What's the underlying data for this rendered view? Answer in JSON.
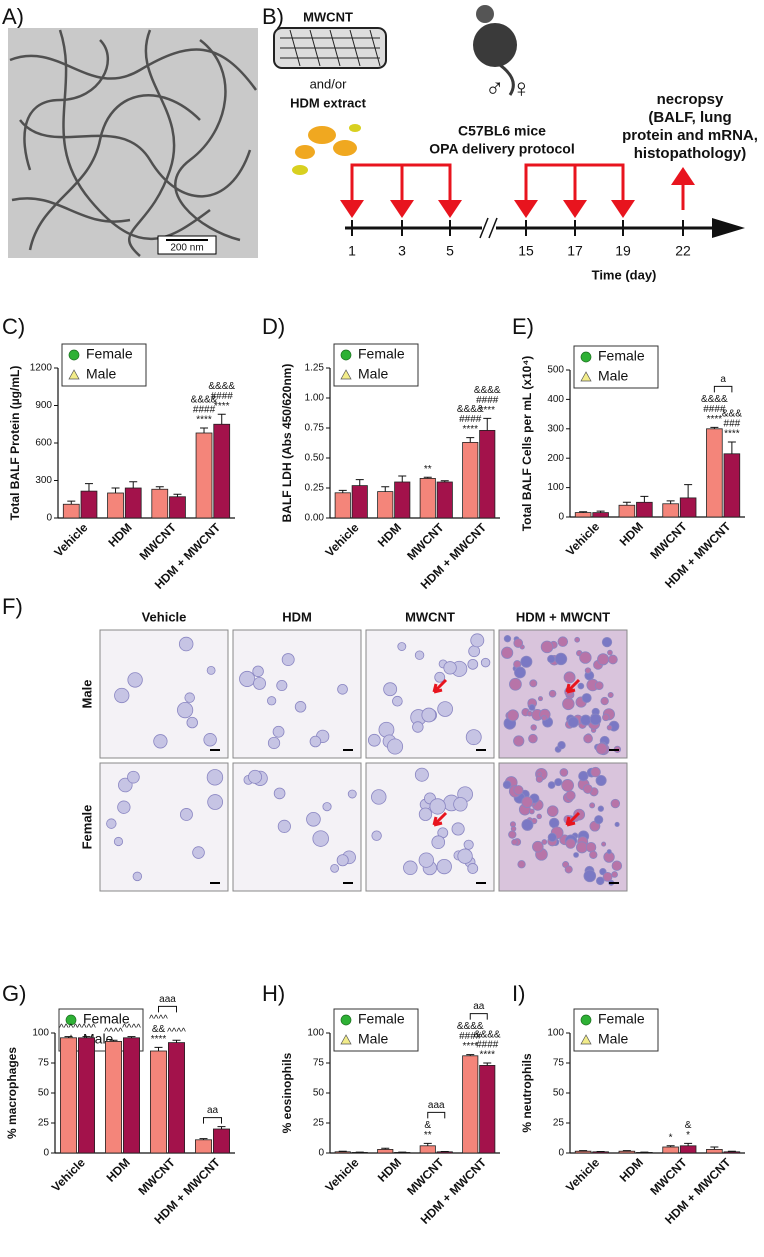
{
  "panel_a": {
    "label": "A)",
    "scale_bar": "200 nm"
  },
  "panel_b": {
    "label": "B)",
    "material": "MWCNT",
    "conjunction": "and/or",
    "allergen": "HDM extract",
    "sexes": "♂ ♀",
    "mice": "C57BL6 mice",
    "protocol": "OPA delivery protocol",
    "endpoint": [
      "necropsy",
      "(BALF, lung",
      "protein and mRNA,",
      "histopathology)"
    ],
    "days": [
      1,
      3,
      5,
      15,
      17,
      19,
      22
    ],
    "axis_label": "Time (day)"
  },
  "panel_f": {
    "label": "F)",
    "columns": [
      "Vehicle",
      "HDM",
      "MWCNT",
      "HDM + MWCNT"
    ],
    "rows": [
      "Male",
      "Female"
    ]
  },
  "chart_data": [
    {
      "type": "bar",
      "panel_label": "C)",
      "y_label": "Total BALF Protein (µg/mL)",
      "categories": [
        "Vehicle",
        "HDM",
        "MWCNT",
        "HDM + MWCNT"
      ],
      "ylim": [
        0,
        1200
      ],
      "yticks": [
        0,
        300,
        600,
        900,
        1200
      ],
      "series": [
        {
          "name": "Female",
          "color": "#f4857a",
          "marker": "circle",
          "marker_color": "#2eb135",
          "values": [
            110,
            200,
            230,
            680
          ],
          "errors": [
            25,
            40,
            20,
            40
          ],
          "annotations": [
            null,
            null,
            null,
            [
              "&&&&",
              "####",
              "****"
            ]
          ]
        },
        {
          "name": "Male",
          "color": "#a3124b",
          "marker": "triangle",
          "marker_color": "#f2ec8a",
          "values": [
            215,
            240,
            170,
            750
          ],
          "errors": [
            60,
            50,
            20,
            80
          ],
          "annotations": [
            null,
            null,
            null,
            [
              "&&&&",
              "####",
              "****"
            ]
          ]
        }
      ],
      "brackets": [
        null,
        null,
        null,
        null
      ]
    },
    {
      "type": "bar",
      "panel_label": "D)",
      "y_label": "BALF LDH (Abs 450/620nm)",
      "categories": [
        "Vehicle",
        "HDM",
        "MWCNT",
        "HDM + MWCNT"
      ],
      "ylim": [
        0,
        1.25
      ],
      "yticks": [
        {
          "value": 0,
          "label": "0.00"
        },
        {
          "value": 0.25,
          "label": "0.25"
        },
        {
          "value": 0.5,
          "label": "0.50"
        },
        {
          "value": 0.75,
          "label": "0.75"
        },
        {
          "value": 1,
          "label": "1.00"
        },
        {
          "value": 1.25,
          "label": "1.25"
        }
      ],
      "series": [
        {
          "name": "Female",
          "color": "#f4857a",
          "marker": "circle",
          "marker_color": "#2eb135",
          "values": [
            0.21,
            0.22,
            0.33,
            0.63
          ],
          "errors": [
            0.02,
            0.04,
            0.01,
            0.04
          ],
          "annotations": [
            null,
            null,
            [
              "**"
            ],
            [
              "&&&&",
              "####",
              "****"
            ]
          ]
        },
        {
          "name": "Male",
          "color": "#a3124b",
          "marker": "triangle",
          "marker_color": "#f2ec8a",
          "values": [
            0.27,
            0.3,
            0.3,
            0.73
          ],
          "errors": [
            0.05,
            0.05,
            0.01,
            0.1
          ],
          "annotations": [
            null,
            null,
            null,
            [
              "&&&&",
              "####",
              "****"
            ]
          ]
        }
      ],
      "brackets": [
        null,
        null,
        null,
        null
      ]
    },
    {
      "type": "bar",
      "panel_label": "E)",
      "y_label": "Total BALF Cells per mL (x10⁴)",
      "categories": [
        "Vehicle",
        "HDM",
        "MWCNT",
        "HDM + MWCNT"
      ],
      "ylim": [
        0,
        500
      ],
      "yticks": [
        0,
        100,
        200,
        300,
        400,
        500
      ],
      "series": [
        {
          "name": "Female",
          "color": "#f4857a",
          "marker": "circle",
          "marker_color": "#2eb135",
          "values": [
            15,
            40,
            45,
            300
          ],
          "errors": [
            3,
            10,
            10,
            5
          ],
          "annotations": [
            null,
            null,
            null,
            [
              "&&&&",
              "####",
              "****"
            ]
          ]
        },
        {
          "name": "Male",
          "color": "#a3124b",
          "marker": "triangle",
          "marker_color": "#f2ec8a",
          "values": [
            15,
            50,
            65,
            215
          ],
          "errors": [
            5,
            20,
            45,
            40
          ],
          "annotations": [
            null,
            null,
            null,
            [
              "&&&",
              "###",
              "****"
            ]
          ]
        }
      ],
      "brackets": [
        null,
        null,
        null,
        "a"
      ]
    },
    {
      "type": "bar",
      "panel_label": "G)",
      "y_label": "% macrophages",
      "categories": [
        "Vehicle",
        "HDM",
        "MWCNT",
        "HDM + MWCNT"
      ],
      "ylim": [
        0,
        100
      ],
      "yticks": [
        0,
        25,
        50,
        75,
        100
      ],
      "series": [
        {
          "name": "Female",
          "color": "#f4857a",
          "marker": "circle",
          "marker_color": "#2eb135",
          "values": [
            96,
            93,
            85,
            11
          ],
          "errors": [
            1,
            1,
            3,
            1
          ],
          "annotations": [
            [
              "^^^^"
            ],
            [
              "^^^^"
            ],
            [
              "^^^^",
              "&&",
              "****"
            ],
            null
          ]
        },
        {
          "name": "Male",
          "color": "#a3124b",
          "marker": "triangle",
          "marker_color": "#f2ec8a",
          "values": [
            96,
            96,
            92,
            20
          ],
          "errors": [
            1,
            1,
            2,
            2
          ],
          "annotations": [
            [
              "^^^^"
            ],
            [
              "^^^^"
            ],
            [
              "^^^^"
            ],
            null
          ]
        }
      ],
      "brackets": [
        null,
        null,
        "aaa",
        "aa"
      ]
    },
    {
      "type": "bar",
      "panel_label": "H)",
      "y_label": "% eosinophils",
      "categories": [
        "Vehicle",
        "HDM",
        "MWCNT",
        "HDM + MWCNT"
      ],
      "ylim": [
        0,
        100
      ],
      "yticks": [
        0,
        25,
        50,
        75,
        100
      ],
      "series": [
        {
          "name": "Female",
          "color": "#f4857a",
          "marker": "circle",
          "marker_color": "#2eb135",
          "values": [
            1,
            3,
            6,
            81
          ],
          "errors": [
            0.5,
            1,
            2,
            1
          ],
          "annotations": [
            null,
            null,
            [
              "&",
              "**"
            ],
            [
              "&&&&",
              "####",
              "****"
            ]
          ]
        },
        {
          "name": "Male",
          "color": "#a3124b",
          "marker": "triangle",
          "marker_color": "#f2ec8a",
          "values": [
            0.5,
            0.5,
            1,
            73
          ],
          "errors": [
            0.2,
            0.2,
            0.3,
            2
          ],
          "annotations": [
            null,
            null,
            null,
            [
              "&&&&",
              "####",
              "****"
            ]
          ]
        }
      ],
      "brackets": [
        null,
        null,
        "aaa",
        "aa"
      ]
    },
    {
      "type": "bar",
      "panel_label": "I)",
      "y_label": "% neutrophils",
      "categories": [
        "Vehicle",
        "HDM",
        "MWCNT",
        "HDM + MWCNT"
      ],
      "ylim": [
        0,
        100
      ],
      "yticks": [
        0,
        25,
        50,
        75,
        100
      ],
      "series": [
        {
          "name": "Female",
          "color": "#f4857a",
          "marker": "circle",
          "marker_color": "#2eb135",
          "values": [
            1.5,
            1.5,
            5,
            3
          ],
          "errors": [
            0.5,
            0.5,
            1,
            2
          ],
          "annotations": [
            null,
            null,
            [
              "*"
            ],
            null
          ]
        },
        {
          "name": "Male",
          "color": "#a3124b",
          "marker": "triangle",
          "marker_color": "#f2ec8a",
          "values": [
            1,
            0.5,
            6,
            1
          ],
          "errors": [
            0.3,
            0.2,
            2,
            0.5
          ],
          "annotations": [
            null,
            null,
            [
              "&",
              "*"
            ],
            null
          ]
        }
      ],
      "brackets": [
        null,
        null,
        null,
        null
      ]
    }
  ]
}
